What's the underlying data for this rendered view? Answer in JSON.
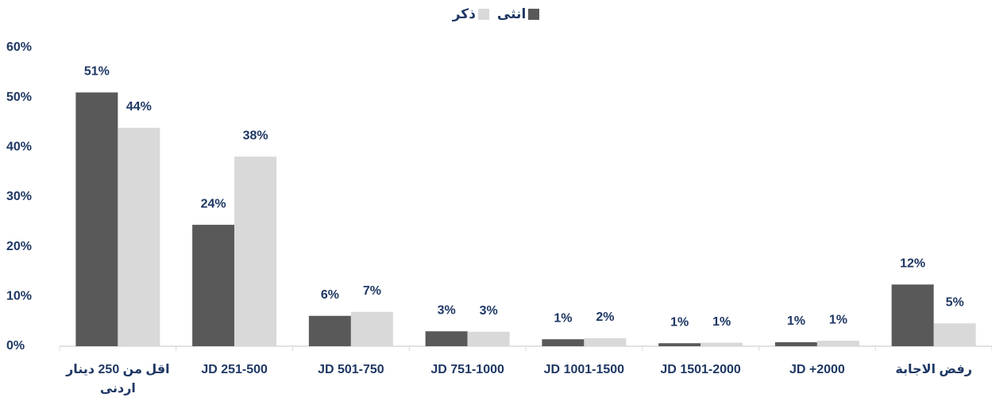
{
  "chart_data": {
    "type": "bar",
    "categories": [
      "اقل من 250 دينار اردنى",
      "251-500 JD",
      "501-750 JD",
      "751-1000 JD",
      "1001-1500 JD",
      "1501-2000 JD",
      "2000+  JD",
      "رفض الاجابة"
    ],
    "series": [
      {
        "name": "انثى",
        "color": "#595959",
        "values": [
          51,
          24.4,
          6.1,
          3,
          1.4,
          0.6,
          0.8,
          12.4
        ],
        "value_labels": [
          "51%",
          "24%",
          "6%",
          "3%",
          "1%",
          "1%",
          "1%",
          "12%"
        ]
      },
      {
        "name": "ذكر",
        "color": "#d9d9d9",
        "values": [
          43.9,
          38.1,
          6.9,
          2.9,
          1.6,
          0.7,
          1.1,
          4.6
        ],
        "value_labels": [
          "44%",
          "38%",
          "7%",
          "3%",
          "2%",
          "1%",
          "1%",
          "5%"
        ]
      }
    ],
    "ylim": [
      0,
      60
    ],
    "yticks": [
      {
        "value": 0,
        "label": "0%"
      },
      {
        "value": 10,
        "label": "10%"
      },
      {
        "value": 20,
        "label": "20%"
      },
      {
        "value": 30,
        "label": "30%"
      },
      {
        "value": 40,
        "label": "40%"
      },
      {
        "value": 50,
        "label": "50%"
      },
      {
        "value": 60,
        "label": "60%"
      }
    ],
    "grid": false,
    "legend": "top"
  }
}
